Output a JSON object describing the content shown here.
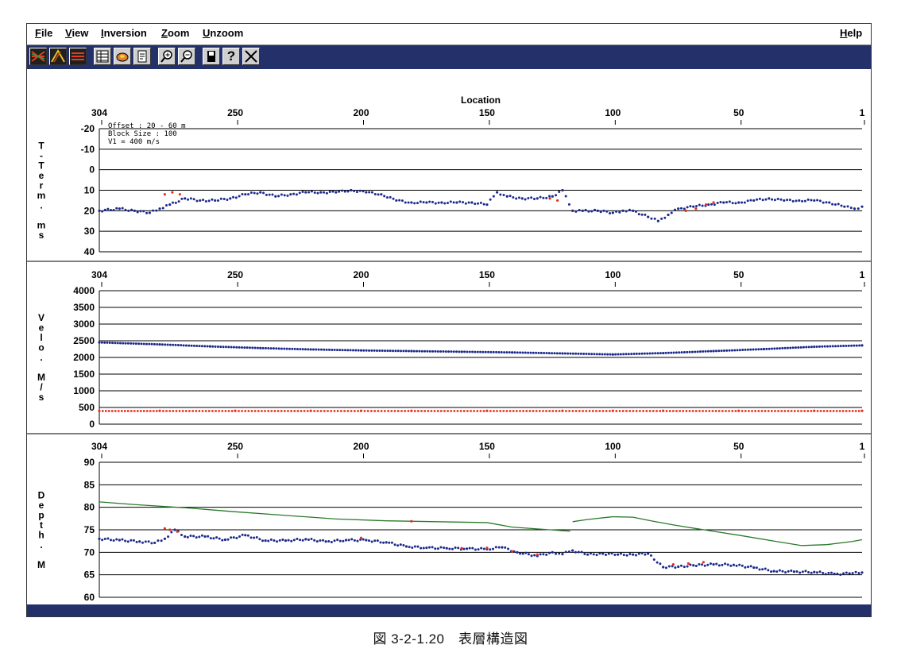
{
  "menu": {
    "file": "File",
    "view": "View",
    "inversion": "Inversion",
    "zoom": "Zoom",
    "unzoom": "Unzoom",
    "help": "Help"
  },
  "toolbar": {
    "buttons": [
      "traces-icon",
      "picks-icon",
      "layers-icon",
      "table-icon",
      "cloud-icon",
      "document-icon",
      "zoom-in-icon",
      "zoom-out-icon",
      "save-icon",
      "help-icon",
      "close-icon"
    ],
    "help_glyph": "?"
  },
  "info": {
    "offset": "Offset : 20 - 60 m",
    "block_size": "Block Size : 100",
    "v1": "V1 = 400 m/s"
  },
  "caption": "図 3-2-1.20　表層構造図",
  "colors": {
    "series_blue": "#1c2a8c",
    "series_red": "#e03020",
    "series_green": "#2a7a2a",
    "toolbar_bg": "#24306a"
  },
  "chart_data": [
    {
      "type": "scatter",
      "panel": "t-term",
      "title": "Location",
      "xlabel": "Location",
      "ylabel": "T-Term. ms",
      "x_ticks": [
        304,
        250,
        200,
        150,
        100,
        50,
        1
      ],
      "x_range": [
        304,
        1
      ],
      "y_ticks": [
        -20,
        -10,
        0,
        10,
        20,
        30,
        40
      ],
      "y_range": [
        -20,
        40
      ],
      "y_inverted": true,
      "grid": true,
      "series": [
        {
          "color": "#1c2a8c",
          "x": [
            304,
            296,
            290,
            284,
            280,
            276,
            270,
            264,
            258,
            252,
            246,
            240,
            234,
            228,
            222,
            216,
            210,
            204,
            198,
            192,
            186,
            180,
            174,
            168,
            162,
            156,
            150,
            146,
            142,
            136,
            130,
            124,
            120,
            116,
            112,
            106,
            100,
            96,
            92,
            86,
            82,
            78,
            74,
            68,
            62,
            56,
            50,
            44,
            38,
            32,
            26,
            20,
            14,
            8,
            4,
            1
          ],
          "y": [
            20,
            19,
            20,
            21,
            19,
            17,
            14,
            15,
            15,
            14,
            12,
            11,
            13,
            12,
            11,
            11,
            11,
            10,
            11,
            12,
            15,
            16,
            16,
            16,
            16,
            16,
            17,
            11,
            13,
            14,
            14,
            13,
            10,
            20,
            20,
            20,
            21,
            20,
            20,
            23,
            25,
            22,
            19,
            18,
            17,
            16,
            16,
            15,
            14,
            15,
            15,
            15,
            16,
            18,
            19,
            18
          ]
        },
        {
          "color": "#e03020",
          "x": [
            278,
            275,
            272,
            125,
            122,
            71,
            67,
            63,
            60
          ],
          "y": [
            12,
            11,
            12,
            14,
            15,
            20,
            19,
            17,
            16
          ]
        }
      ]
    },
    {
      "type": "scatter",
      "panel": "velocity",
      "ylabel": "Velo. M/s",
      "x_ticks": [
        304,
        250,
        200,
        150,
        100,
        50,
        1
      ],
      "x_range": [
        304,
        1
      ],
      "y_ticks": [
        0,
        500,
        1000,
        1500,
        2000,
        2500,
        3000,
        3500,
        4000
      ],
      "y_range": [
        0,
        4000
      ],
      "grid": true,
      "series": [
        {
          "color": "#1c2a8c",
          "x": [
            304,
            280,
            260,
            240,
            220,
            200,
            180,
            160,
            140,
            120,
            100,
            80,
            60,
            40,
            20,
            1
          ],
          "y": [
            2450,
            2390,
            2330,
            2280,
            2240,
            2210,
            2190,
            2170,
            2150,
            2120,
            2090,
            2130,
            2190,
            2250,
            2320,
            2360
          ]
        },
        {
          "color": "#e03020",
          "x": [
            304,
            280,
            250,
            220,
            200,
            180,
            150,
            120,
            100,
            80,
            50,
            20,
            1
          ],
          "y": [
            400,
            400,
            400,
            400,
            400,
            400,
            400,
            400,
            400,
            400,
            400,
            400,
            400
          ]
        }
      ]
    },
    {
      "type": "line",
      "panel": "depth",
      "ylabel": "Depth. M",
      "x_ticks": [
        304,
        250,
        200,
        150,
        100,
        50,
        1
      ],
      "x_range": [
        304,
        1
      ],
      "y_ticks": [
        60,
        65,
        70,
        75,
        80,
        85,
        90
      ],
      "y_range": [
        60,
        90
      ],
      "grid": true,
      "series": [
        {
          "color": "#2a7a2a",
          "x": [
            304,
            290,
            270,
            250,
            230,
            210,
            190,
            170,
            150,
            140,
            130,
            120,
            117,
            116,
            110,
            100,
            92,
            85,
            75,
            65,
            50,
            35,
            25,
            15,
            5,
            1
          ],
          "y": [
            81.2,
            80.6,
            79.9,
            79.0,
            78.2,
            77.4,
            77.0,
            76.8,
            76.6,
            75.6,
            75.2,
            74.8,
            74.7,
            76.8,
            77.3,
            77.9,
            77.8,
            77.0,
            76.0,
            75.1,
            73.8,
            72.4,
            71.5,
            71.7,
            72.4,
            72.8
          ]
        },
        {
          "color": "#1c2a8c",
          "x": [
            304,
            296,
            288,
            282,
            278,
            274,
            270,
            262,
            254,
            246,
            238,
            230,
            222,
            214,
            206,
            198,
            190,
            182,
            174,
            166,
            158,
            150,
            144,
            138,
            130,
            124,
            120,
            116,
            110,
            104,
            98,
            92,
            86,
            80,
            74,
            68,
            60,
            52,
            44,
            36,
            28,
            20,
            12,
            6,
            1
          ],
          "y": [
            73,
            72.7,
            72.4,
            72.1,
            73.0,
            75.0,
            73.5,
            73.5,
            72.8,
            73.8,
            72.6,
            72.6,
            72.9,
            72.4,
            72.7,
            72.7,
            72.2,
            71.3,
            71.0,
            70.9,
            70.8,
            70.7,
            71.1,
            70.0,
            69.2,
            70.0,
            69.6,
            70.4,
            69.5,
            69.7,
            69.5,
            69.5,
            69.7,
            66.7,
            66.8,
            67.1,
            67.3,
            67.2,
            66.6,
            65.8,
            65.7,
            65.6,
            65.2,
            65.3,
            65.5
          ]
        },
        {
          "color": "#e03020",
          "x": [
            278,
            276,
            273,
            200,
            180,
            160,
            150,
            140,
            130,
            76,
            70,
            64
          ],
          "y": [
            75.3,
            75.0,
            74.6,
            73.2,
            76.9,
            70.9,
            71.0,
            70.2,
            69.5,
            67.3,
            67.5,
            67.8
          ]
        }
      ]
    }
  ]
}
